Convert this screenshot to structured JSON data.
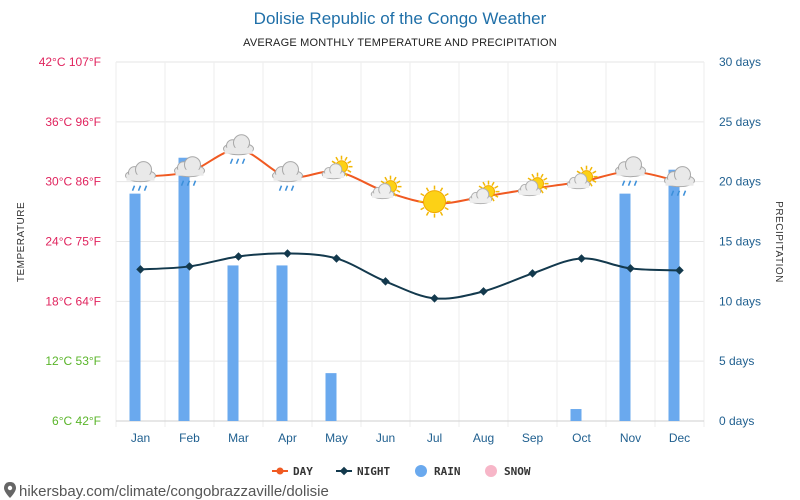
{
  "header": {
    "title": "Dolisie Republic of the Congo Weather",
    "subtitle": "AVERAGE MONTHLY TEMPERATURE AND PRECIPITATION"
  },
  "axes": {
    "left_title": "TEMPERATURE",
    "right_title": "PRECIPITATION",
    "left_ticks": [
      {
        "label": "42°C 107°F",
        "value": 42,
        "color": "#e0245e"
      },
      {
        "label": "36°C 96°F",
        "value": 36,
        "color": "#e0245e"
      },
      {
        "label": "30°C 86°F",
        "value": 30,
        "color": "#e0245e"
      },
      {
        "label": "24°C 75°F",
        "value": 24,
        "color": "#e0245e"
      },
      {
        "label": "18°C 64°F",
        "value": 18,
        "color": "#e0245e"
      },
      {
        "label": "12°C 53°F",
        "value": 12,
        "color": "#5ab52a"
      },
      {
        "label": "6°C 42°F",
        "value": 6,
        "color": "#5ab52a"
      }
    ],
    "right_ticks": [
      {
        "label": "30 days",
        "value": 30
      },
      {
        "label": "25 days",
        "value": 25
      },
      {
        "label": "20 days",
        "value": 20
      },
      {
        "label": "15 days",
        "value": 15
      },
      {
        "label": "10 days",
        "value": 10
      },
      {
        "label": "5 days",
        "value": 5
      },
      {
        "label": "0 days",
        "value": 0
      }
    ]
  },
  "legend": [
    {
      "label": "DAY",
      "color": "#f05a22",
      "kind": "line"
    },
    {
      "label": "NIGHT",
      "color": "#13394d",
      "kind": "line"
    },
    {
      "label": "RAIN",
      "color": "#6aa9ee",
      "kind": "dot"
    },
    {
      "label": "SNOW",
      "color": "#f7b6c8",
      "kind": "dot"
    }
  ],
  "footer": {
    "url": "hikersbay.com/climate/congobrazzaville/dolisie"
  },
  "chart_data": {
    "type": "line",
    "categories": [
      "Jan",
      "Feb",
      "Mar",
      "Apr",
      "May",
      "Jun",
      "Jul",
      "Aug",
      "Sep",
      "Oct",
      "Nov",
      "Dec"
    ],
    "ylim_left": [
      6,
      42
    ],
    "ylim_right": [
      0,
      30
    ],
    "grid": true,
    "legend_position": "bottom",
    "series": [
      {
        "name": "DAY",
        "axis": "left",
        "color": "#f05a22",
        "values": [
          30.5,
          31.0,
          33.2,
          30.5,
          31.0,
          29.0,
          27.8,
          28.5,
          29.3,
          30.0,
          31.0,
          30.0
        ]
      },
      {
        "name": "NIGHT",
        "axis": "left",
        "color": "#13394d",
        "values": [
          21.2,
          21.5,
          22.5,
          22.8,
          22.3,
          20.0,
          18.3,
          19.0,
          20.8,
          22.3,
          21.3,
          21.1
        ]
      },
      {
        "name": "RAIN",
        "axis": "right",
        "type": "bar",
        "color": "#6aa9ee",
        "values": [
          19,
          22,
          13,
          13,
          4,
          0,
          0,
          0,
          0,
          1,
          19,
          21
        ]
      }
    ],
    "weather_icons": [
      "rain-cloud",
      "rain-cloud",
      "rain-cloud",
      "rain-cloud",
      "sun-cloud",
      "sun-cloud",
      "sun",
      "sun-cloud",
      "sun-cloud",
      "sun-cloud",
      "rain-cloud",
      "rain-cloud"
    ]
  }
}
